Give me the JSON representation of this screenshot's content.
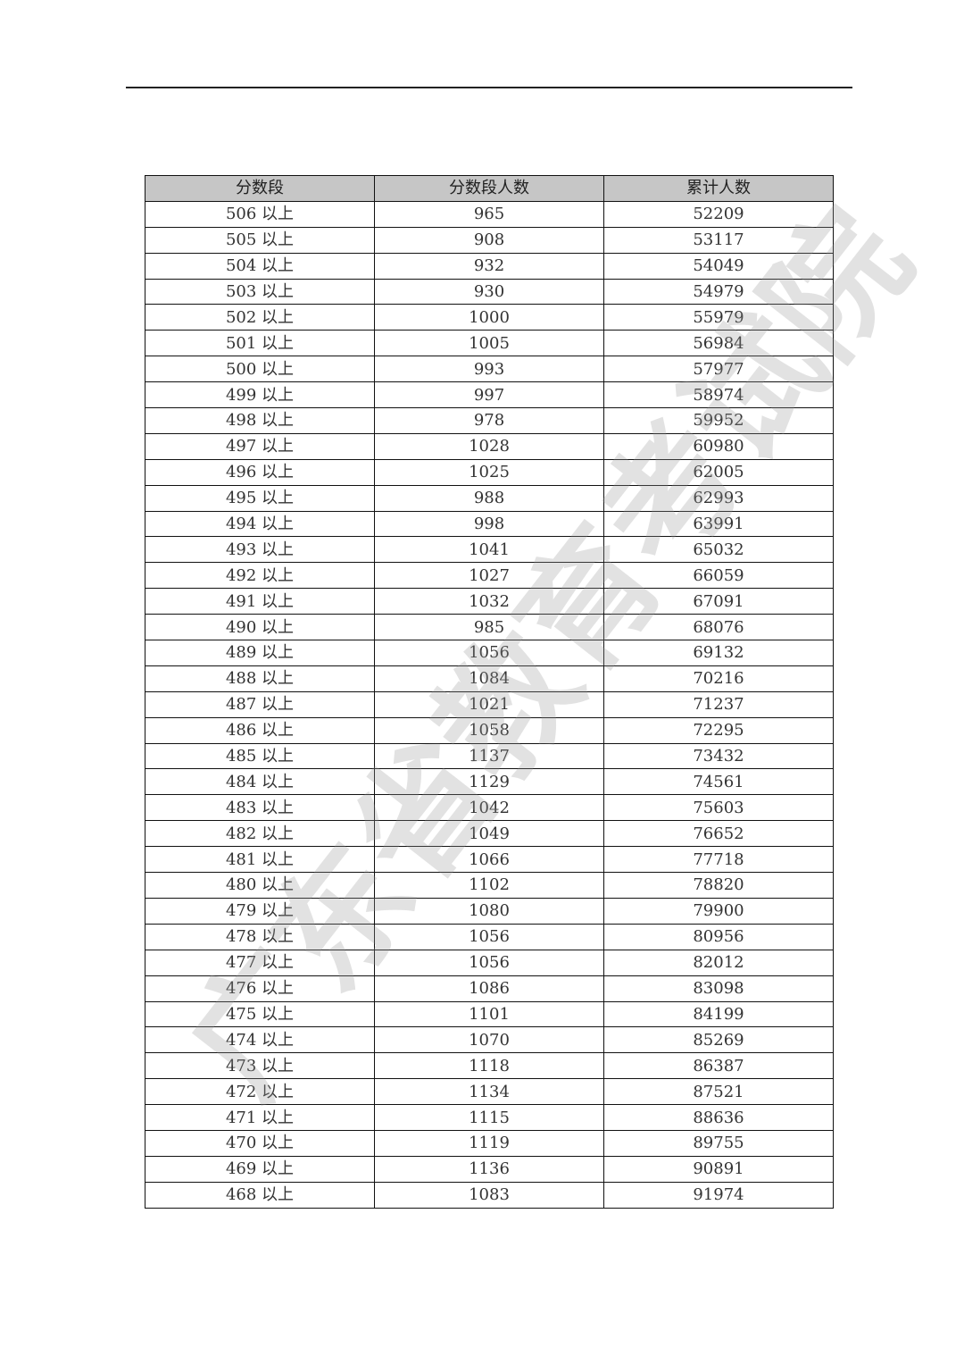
{
  "watermark": "广东省教育考试院",
  "table": {
    "headers": [
      "分数段",
      "分数段人数",
      "累计人数"
    ],
    "rows": [
      [
        "506 以上",
        "965",
        "52209"
      ],
      [
        "505 以上",
        "908",
        "53117"
      ],
      [
        "504 以上",
        "932",
        "54049"
      ],
      [
        "503 以上",
        "930",
        "54979"
      ],
      [
        "502 以上",
        "1000",
        "55979"
      ],
      [
        "501 以上",
        "1005",
        "56984"
      ],
      [
        "500 以上",
        "993",
        "57977"
      ],
      [
        "499 以上",
        "997",
        "58974"
      ],
      [
        "498 以上",
        "978",
        "59952"
      ],
      [
        "497 以上",
        "1028",
        "60980"
      ],
      [
        "496 以上",
        "1025",
        "62005"
      ],
      [
        "495 以上",
        "988",
        "62993"
      ],
      [
        "494 以上",
        "998",
        "63991"
      ],
      [
        "493 以上",
        "1041",
        "65032"
      ],
      [
        "492 以上",
        "1027",
        "66059"
      ],
      [
        "491 以上",
        "1032",
        "67091"
      ],
      [
        "490 以上",
        "985",
        "68076"
      ],
      [
        "489 以上",
        "1056",
        "69132"
      ],
      [
        "488 以上",
        "1084",
        "70216"
      ],
      [
        "487 以上",
        "1021",
        "71237"
      ],
      [
        "486 以上",
        "1058",
        "72295"
      ],
      [
        "485 以上",
        "1137",
        "73432"
      ],
      [
        "484 以上",
        "1129",
        "74561"
      ],
      [
        "483 以上",
        "1042",
        "75603"
      ],
      [
        "482 以上",
        "1049",
        "76652"
      ],
      [
        "481 以上",
        "1066",
        "77718"
      ],
      [
        "480 以上",
        "1102",
        "78820"
      ],
      [
        "479 以上",
        "1080",
        "79900"
      ],
      [
        "478 以上",
        "1056",
        "80956"
      ],
      [
        "477 以上",
        "1056",
        "82012"
      ],
      [
        "476 以上",
        "1086",
        "83098"
      ],
      [
        "475 以上",
        "1101",
        "84199"
      ],
      [
        "474 以上",
        "1070",
        "85269"
      ],
      [
        "473 以上",
        "1118",
        "86387"
      ],
      [
        "472 以上",
        "1134",
        "87521"
      ],
      [
        "471 以上",
        "1115",
        "88636"
      ],
      [
        "470 以上",
        "1119",
        "89755"
      ],
      [
        "469 以上",
        "1136",
        "90891"
      ],
      [
        "468 以上",
        "1083",
        "91974"
      ]
    ]
  }
}
